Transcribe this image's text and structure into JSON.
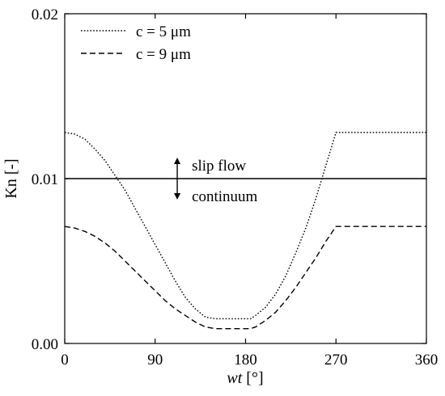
{
  "chart_data": {
    "type": "line",
    "xlabel_italic": "wt",
    "xlabel_unit": " [°]",
    "ylabel": "Kn [-]",
    "xlim": [
      0,
      360
    ],
    "ylim": [
      0,
      0.02
    ],
    "x_ticks": [
      0,
      90,
      180,
      270,
      360
    ],
    "x_tick_labels": [
      "0",
      "90",
      "180",
      "270",
      "360"
    ],
    "y_ticks": [
      0,
      0.01,
      0.02
    ],
    "y_tick_labels": [
      "0.00",
      "0.01",
      "0.02"
    ],
    "grid": false,
    "legend_position": "top-left",
    "series": [
      {
        "name": "c = 5 μm",
        "style": "dotted",
        "x": [
          0,
          10,
          20,
          30,
          40,
          50,
          60,
          70,
          80,
          90,
          100,
          110,
          120,
          130,
          140,
          150,
          155,
          160,
          170,
          180,
          185,
          190,
          200,
          210,
          220,
          230,
          240,
          250,
          260,
          270,
          280,
          300,
          320,
          340,
          360
        ],
        "y": [
          0.0128,
          0.0127,
          0.0124,
          0.0118,
          0.0111,
          0.0102,
          0.0093,
          0.0082,
          0.0071,
          0.006,
          0.0049,
          0.0038,
          0.0028,
          0.0021,
          0.0016,
          0.0015,
          0.0015,
          0.0015,
          0.0015,
          0.0015,
          0.0015,
          0.0017,
          0.0022,
          0.003,
          0.0041,
          0.0055,
          0.007,
          0.0088,
          0.0108,
          0.0128,
          0.0128,
          0.0128,
          0.0128,
          0.0128,
          0.0128
        ]
      },
      {
        "name": "c = 9 μm",
        "style": "dashed",
        "x": [
          0,
          10,
          20,
          30,
          40,
          50,
          60,
          70,
          80,
          90,
          100,
          110,
          120,
          130,
          140,
          150,
          155,
          160,
          170,
          180,
          185,
          190,
          200,
          210,
          220,
          230,
          240,
          250,
          260,
          270,
          280,
          300,
          320,
          340,
          360
        ],
        "y": [
          0.0071,
          0.007,
          0.0068,
          0.0065,
          0.0061,
          0.0056,
          0.005,
          0.0044,
          0.0038,
          0.0032,
          0.0026,
          0.0021,
          0.0017,
          0.0013,
          0.001,
          0.0009,
          0.0009,
          0.0009,
          0.0009,
          0.0009,
          0.0009,
          0.001,
          0.0014,
          0.0019,
          0.0026,
          0.0034,
          0.0043,
          0.0052,
          0.0062,
          0.0071,
          0.0071,
          0.0071,
          0.0071,
          0.0071,
          0.0071
        ]
      }
    ],
    "reference_line": {
      "y": 0.01,
      "style": "solid"
    },
    "annotations": {
      "arrow_x": 112,
      "above_text": "slip flow",
      "below_text": "continuum"
    }
  }
}
